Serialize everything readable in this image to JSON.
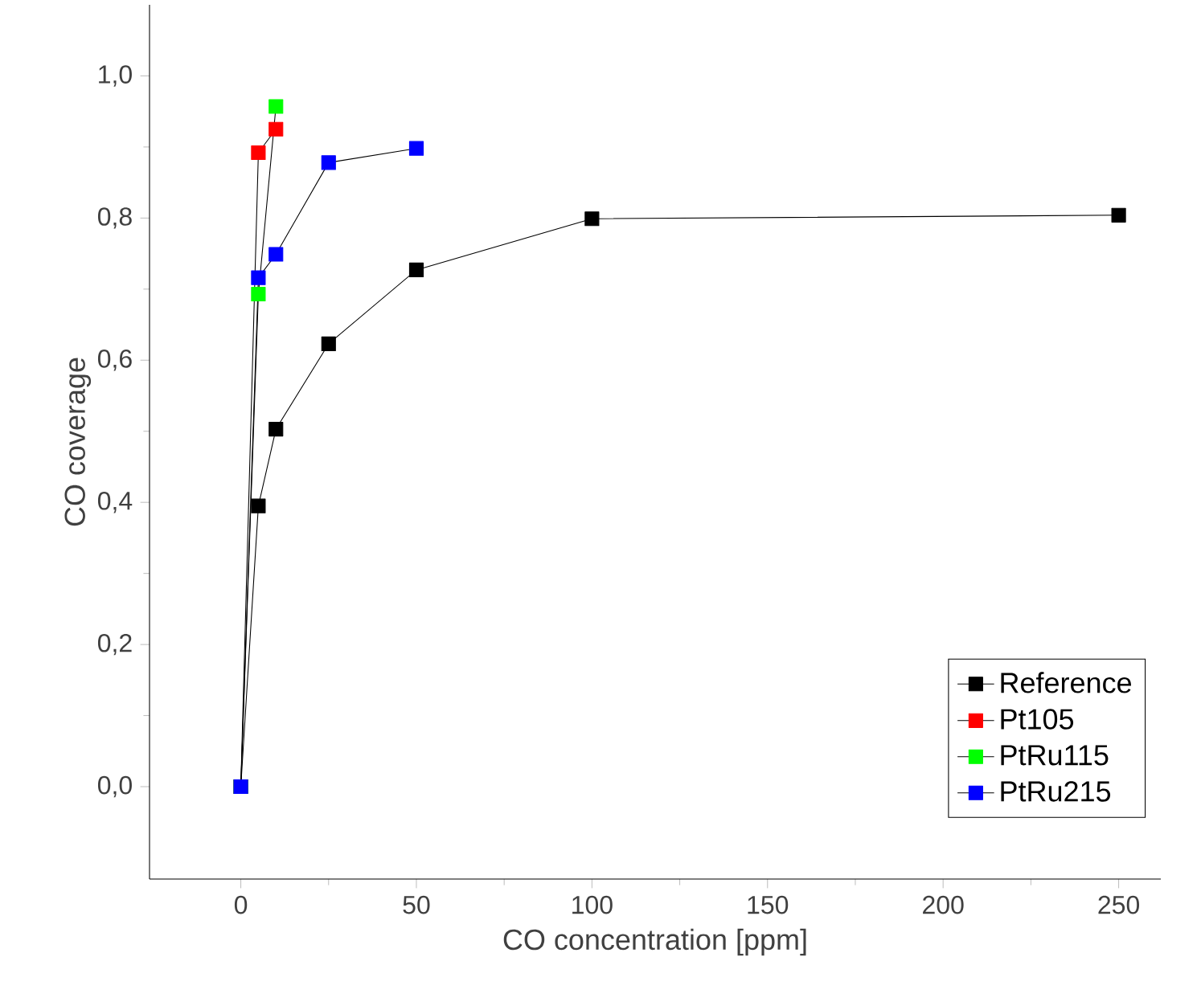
{
  "chart_data": {
    "type": "line",
    "xlabel": "CO concentration [ppm]",
    "ylabel": "CO coverage",
    "xlim": [
      -26,
      262
    ],
    "ylim": [
      -0.13,
      1.1
    ],
    "xticks": [
      0,
      50,
      100,
      150,
      200,
      250
    ],
    "yticks": [
      {
        "value": 0,
        "label": "0,0"
      },
      {
        "value": 0.2,
        "label": "0,2"
      },
      {
        "value": 0.4,
        "label": "0,4"
      },
      {
        "value": 0.6,
        "label": "0,6"
      },
      {
        "value": 0.8,
        "label": "0,8"
      },
      {
        "value": 1.0,
        "label": "1,0"
      }
    ],
    "marker": "square",
    "line_style": "solid",
    "grid": false,
    "legend": "bottom right",
    "series": [
      {
        "name": "Reference",
        "color": "#000000",
        "x": [
          0,
          5,
          10,
          25,
          50,
          100,
          250
        ],
        "values": [
          0,
          0.395,
          0.503,
          0.623,
          0.727,
          0.799,
          0.804
        ]
      },
      {
        "name": "Pt105",
        "color": "#ff0000",
        "x": [
          0,
          5,
          10
        ],
        "values": [
          0,
          0.892,
          0.925
        ]
      },
      {
        "name": "PtRu115",
        "color": "#00ff00",
        "x": [
          0,
          5,
          10
        ],
        "values": [
          0,
          0.693,
          0.957
        ]
      },
      {
        "name": "PtRu215",
        "color": "#0000ff",
        "x": [
          0,
          5,
          10,
          25,
          50
        ],
        "values": [
          0,
          0.716,
          0.749,
          0.878,
          0.898
        ]
      }
    ]
  }
}
